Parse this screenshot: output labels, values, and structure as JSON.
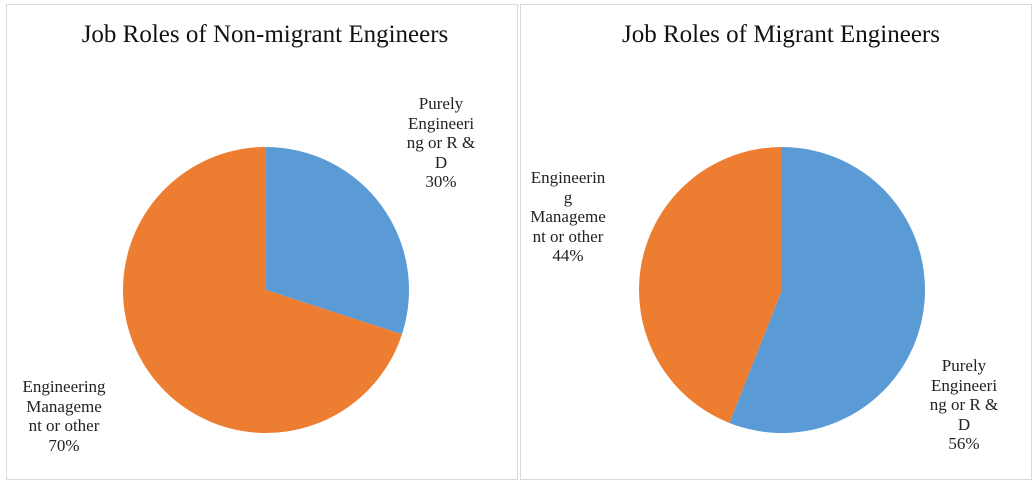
{
  "chart_data": [
    {
      "type": "pie",
      "title": "Job Roles of Non-migrant Engineers",
      "categories": [
        "Purely Engineering or R & D",
        "Engineering Management or other"
      ],
      "values": [
        30,
        70
      ],
      "value_labels": [
        "30%",
        "70%"
      ],
      "colors": [
        "#5b9bd5",
        "#ed7d31"
      ]
    },
    {
      "type": "pie",
      "title": "Job Roles of Migrant Engineers",
      "categories": [
        "Purely Engineering or R & D",
        "Engineering Management or other"
      ],
      "values": [
        56,
        44
      ],
      "value_labels": [
        "56%",
        "44%"
      ],
      "colors": [
        "#5b9bd5",
        "#ed7d31"
      ]
    }
  ]
}
